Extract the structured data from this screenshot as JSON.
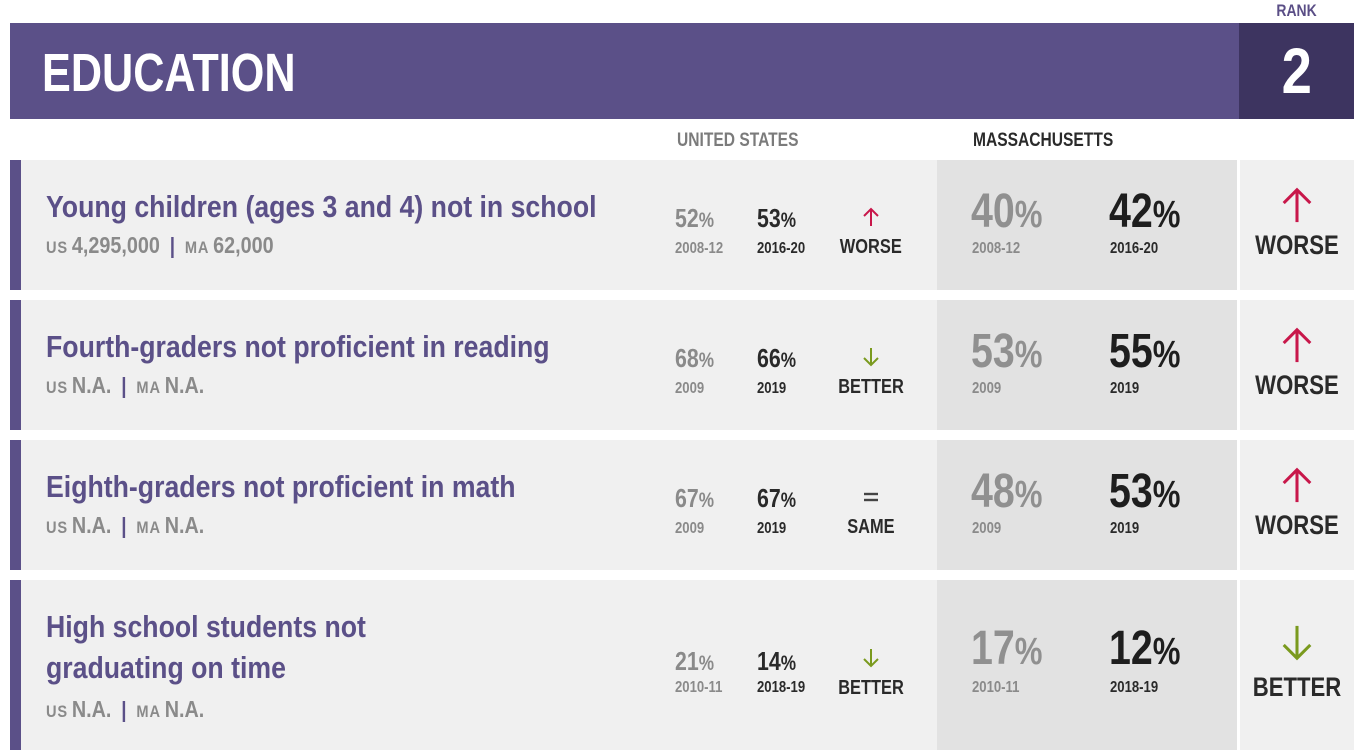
{
  "header": {
    "title": "EDUCATION",
    "rank_label": "RANK",
    "rank_value": "2"
  },
  "columns": {
    "us": "UNITED STATES",
    "ma": "MASSACHUSETTS"
  },
  "colors": {
    "purple": "#5b5088",
    "dark_purple": "#3d3460",
    "worse": "#c8174a",
    "better": "#7a9a1e"
  },
  "rows": [
    {
      "title_lines": [
        "Young children (ages 3 and 4) not in school"
      ],
      "us_label": "US",
      "us_count": "4,295,000",
      "ma_label": "MA",
      "ma_count": "62,000",
      "us_old": "52",
      "us_old_year": "2008-12",
      "us_new": "53",
      "us_new_year": "2016-20",
      "us_trend": "WORSE",
      "us_trend_icon": "up-arrow",
      "ma_old": "40",
      "ma_old_year": "2008-12",
      "ma_new": "42",
      "ma_new_year": "2016-20",
      "ma_trend": "WORSE",
      "ma_trend_icon": "up-arrow"
    },
    {
      "title_lines": [
        "Fourth-graders not proficient in reading"
      ],
      "us_label": "US",
      "us_count": "N.A.",
      "ma_label": "MA",
      "ma_count": "N.A.",
      "us_old": "68",
      "us_old_year": "2009",
      "us_new": "66",
      "us_new_year": "2019",
      "us_trend": "BETTER",
      "us_trend_icon": "down-arrow",
      "ma_old": "53",
      "ma_old_year": "2009",
      "ma_new": "55",
      "ma_new_year": "2019",
      "ma_trend": "WORSE",
      "ma_trend_icon": "up-arrow"
    },
    {
      "title_lines": [
        "Eighth-graders not proficient in math"
      ],
      "us_label": "US",
      "us_count": "N.A.",
      "ma_label": "MA",
      "ma_count": "N.A.",
      "us_old": "67",
      "us_old_year": "2009",
      "us_new": "67",
      "us_new_year": "2019",
      "us_trend": "SAME",
      "us_trend_icon": "equals",
      "ma_old": "48",
      "ma_old_year": "2009",
      "ma_new": "53",
      "ma_new_year": "2019",
      "ma_trend": "WORSE",
      "ma_trend_icon": "up-arrow"
    },
    {
      "title_lines": [
        "High school students not",
        "graduating on time"
      ],
      "us_label": "US",
      "us_count": "N.A.",
      "ma_label": "MA",
      "ma_count": "N.A.",
      "us_old": "21",
      "us_old_year": "2010-11",
      "us_new": "14",
      "us_new_year": "2018-19",
      "us_trend": "BETTER",
      "us_trend_icon": "down-arrow",
      "ma_old": "17",
      "ma_old_year": "2010-11",
      "ma_new": "12",
      "ma_new_year": "2018-19",
      "ma_trend": "BETTER",
      "ma_trend_icon": "down-arrow"
    }
  ]
}
